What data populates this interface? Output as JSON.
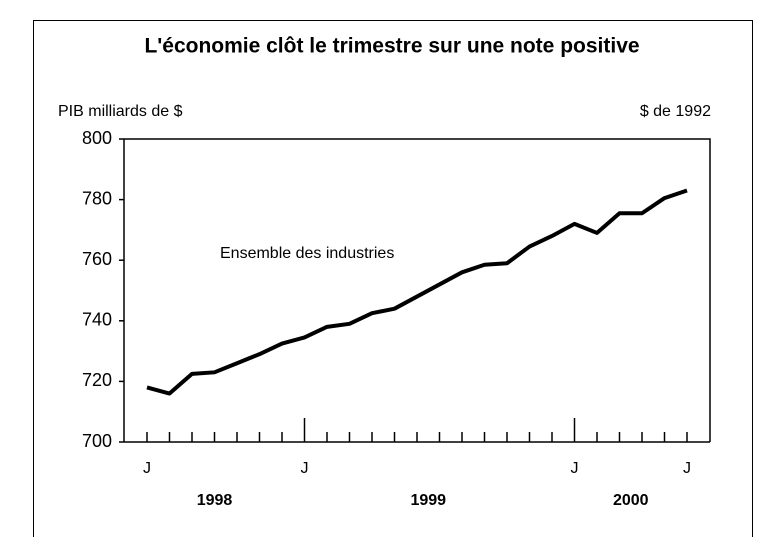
{
  "chart_data": {
    "type": "line",
    "title": "L'économie clôt le trimestre sur une note positive",
    "y_label": "PIB milliards de $",
    "y_label_right": "$ de 1992",
    "categories": [
      "J",
      null,
      null,
      null,
      null,
      null,
      null,
      "J",
      null,
      null,
      null,
      null,
      null,
      null,
      null,
      null,
      null,
      null,
      null,
      "J",
      null,
      null,
      null,
      null,
      "J"
    ],
    "years": [
      {
        "label": "1998",
        "from": 0,
        "to": 6
      },
      {
        "label": "1999",
        "from": 7,
        "to": 18
      },
      {
        "label": "2000",
        "from": 19,
        "to": 24
      }
    ],
    "series": [
      {
        "name": "Ensemble des industries",
        "color": "#000000",
        "values": [
          718,
          716,
          722.5,
          723,
          726,
          729,
          732.5,
          734.5,
          738,
          739,
          742.5,
          744,
          748,
          752,
          756,
          758.5,
          759,
          764.5,
          768,
          772,
          769,
          775.5,
          775.5,
          780.5,
          783
        ]
      }
    ],
    "ylim": [
      700,
      800
    ],
    "yticks": [
      700,
      720,
      740,
      760,
      780,
      800
    ]
  }
}
